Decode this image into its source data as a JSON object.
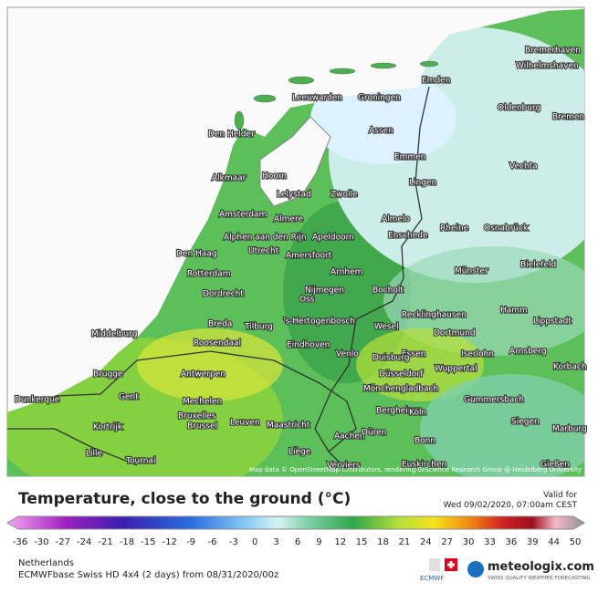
{
  "map": {
    "cities": [
      "Bremerhaven",
      "Wilhelmshaven",
      "Emden",
      "Leeuwarden",
      "Groningen",
      "Oldenburg",
      "Bremen",
      "Den Helder",
      "Assen",
      "Emmen",
      "Vechta",
      "Lingen",
      "Alkmaar",
      "Hoorn",
      "Lelystad",
      "Zwolle",
      "Amsterdam",
      "Almere",
      "Almelo",
      "Rheine",
      "Osnabrück",
      "Alphen aan den Rijn",
      "Apeldoorn",
      "Enschede",
      "Den Haag",
      "Utrecht",
      "Amersfoort",
      "Arnhem",
      "Münster",
      "Bielefeld",
      "Rotterdam",
      "Nijmegen",
      "Dordrecht",
      "Oss",
      "Bocholt",
      "Breda",
      "Tilburg",
      "'s-Hertogenbosch",
      "Hamm",
      "Lippstadt",
      "Middelburg",
      "Wesel",
      "Recklinghausen",
      "Dortmund",
      "Roosendaal",
      "Eindhoven",
      "Venlo",
      "Essen",
      "Iserlohn",
      "Arnsberg",
      "Brugge",
      "Antwerpen",
      "Duisburg",
      "Wuppertal",
      "Düsseldorf",
      "Korbach",
      "Dunkerque",
      "Gent",
      "Mechelen",
      "Mönchengladbach",
      "Gummersbach",
      "Bruxelles",
      "Brussel",
      "Leuven",
      "Maastricht",
      "Bergheim",
      "Köln",
      "Siegen",
      "Kortrijk",
      "Aachen",
      "Düren",
      "Marburg",
      "Bonn",
      "Liège",
      "Lille",
      "Tournai",
      "Verviers",
      "Euskirchen",
      "Gießen"
    ],
    "attribution": "Map data © OpenStreetMap contributors, rendering GIScience Research Group @ Heidelberg University"
  },
  "legend": {
    "title": "Temperature, close to the ground (°C)",
    "valid_label": "Valid for",
    "valid_time": "Wed 09/02/2020, 07:00am CEST",
    "ticks": [
      -36,
      -30,
      -27,
      -24,
      -21,
      -18,
      -15,
      -12,
      -9,
      -6,
      -3,
      0,
      3,
      6,
      9,
      12,
      15,
      18,
      21,
      24,
      27,
      30,
      33,
      36,
      39,
      44,
      50
    ]
  },
  "footer": {
    "region": "Netherlands",
    "model": "ECMWFbase Swiss HD 4x4 (2 days) from 08/31/2020/00z",
    "brand": "meteologix.com",
    "tagline": "SWISS QUALITY WEATHER FORECASTING",
    "ecmwf": "ECMWF"
  }
}
